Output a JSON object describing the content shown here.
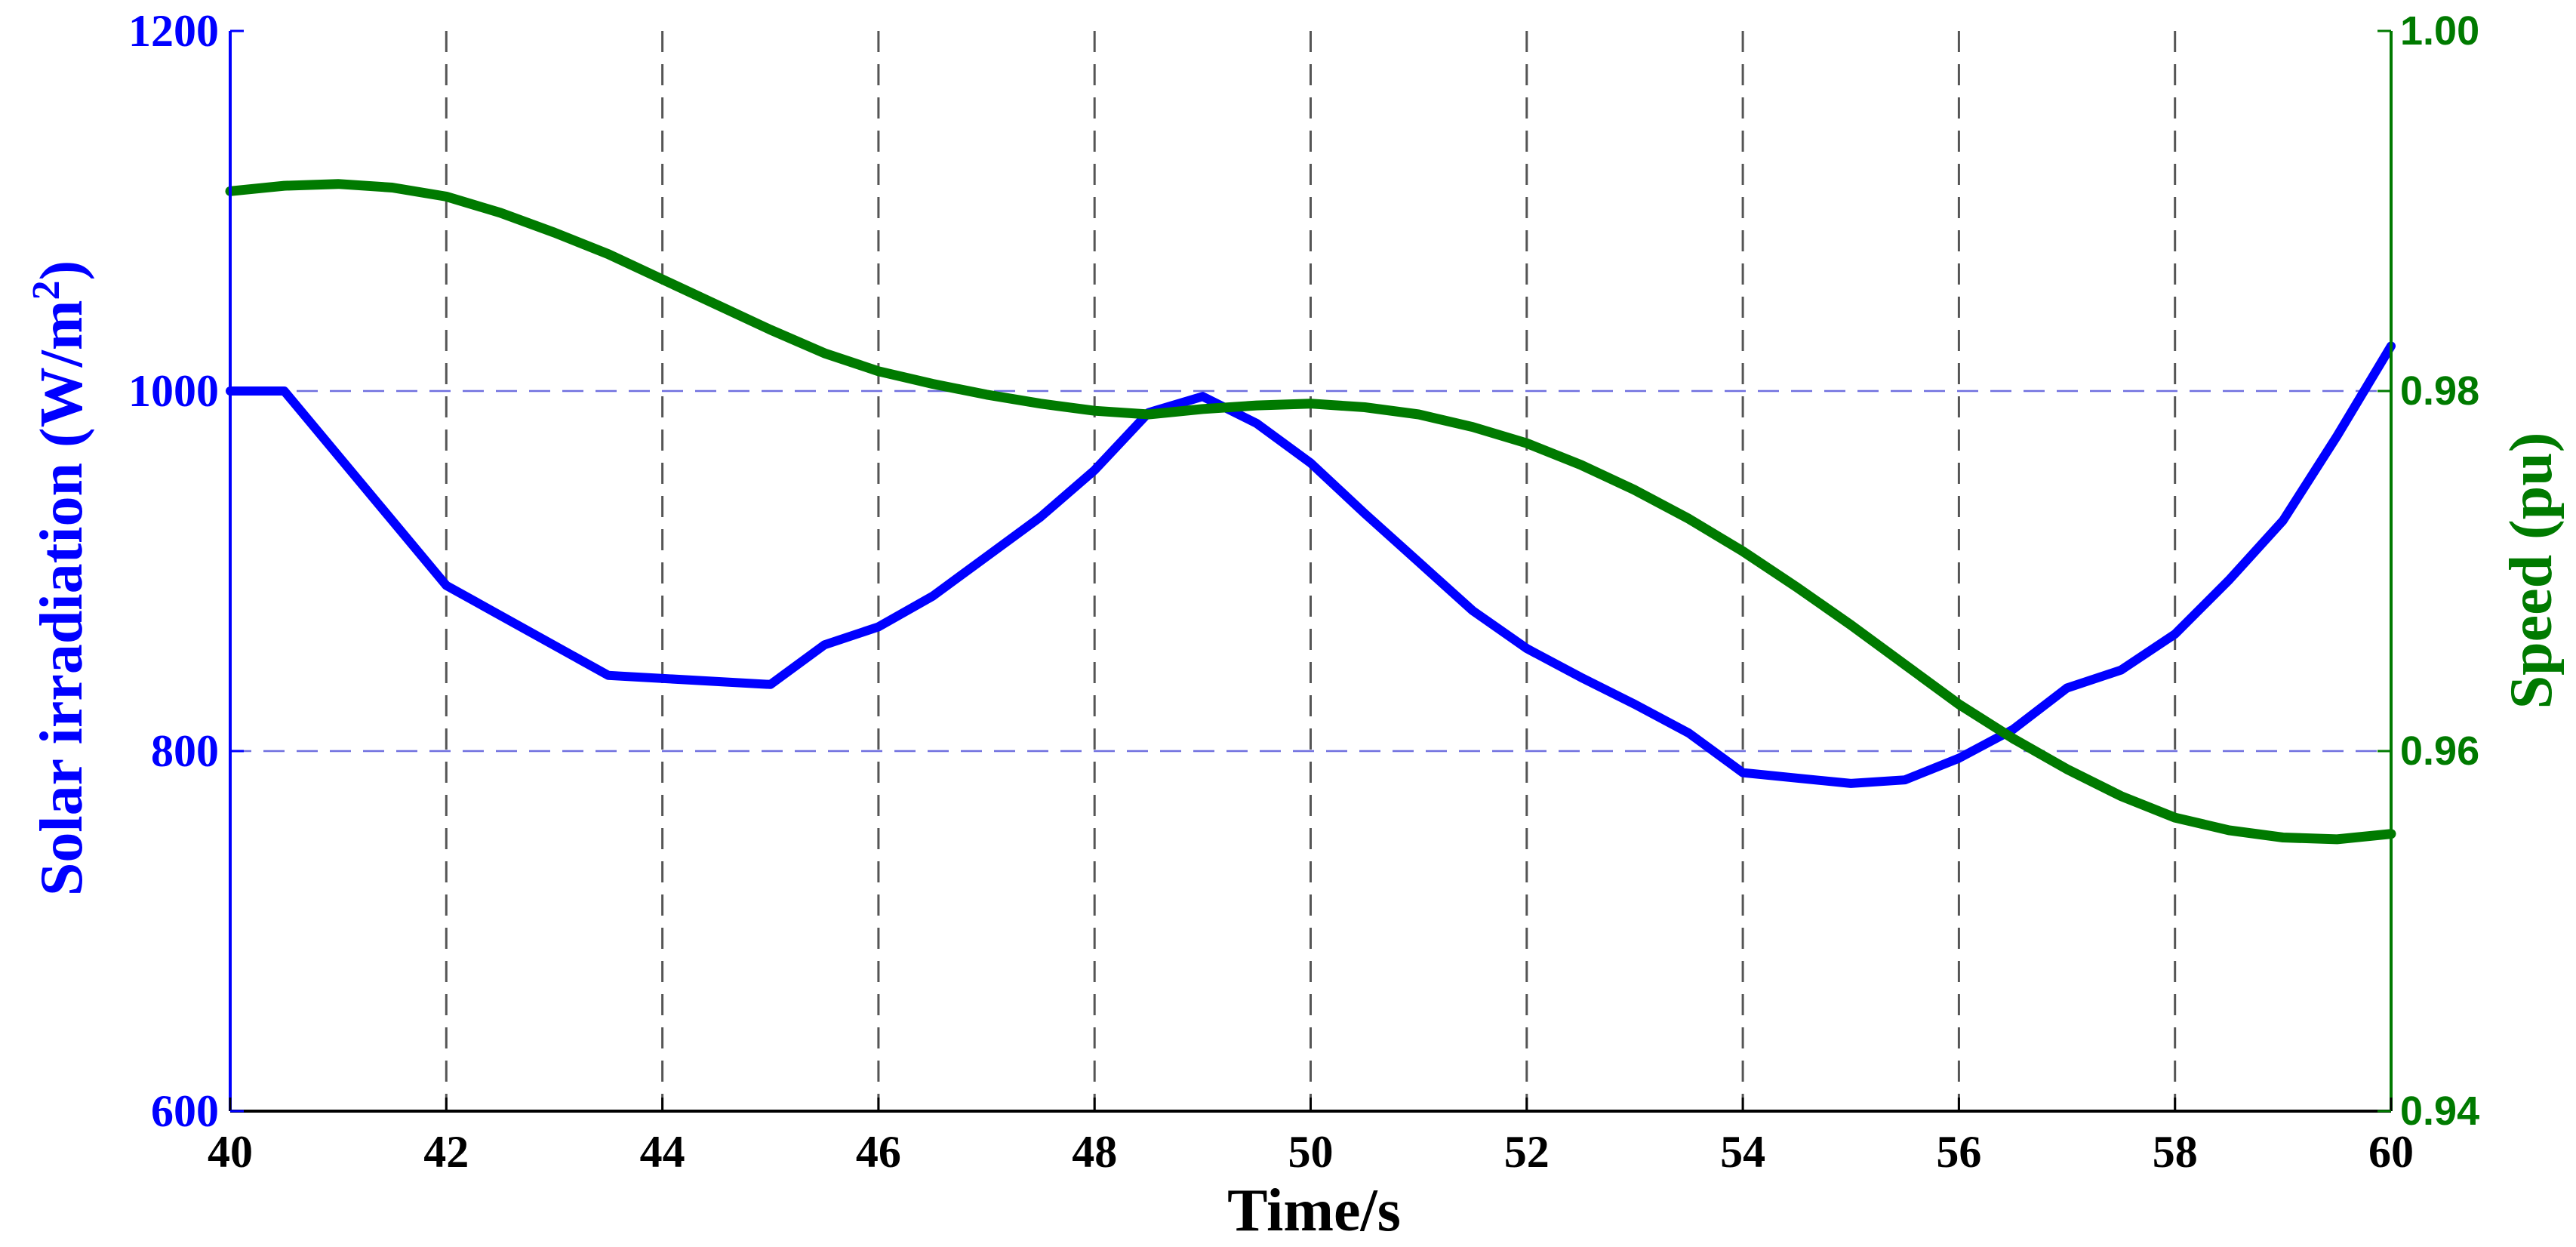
{
  "chart_data": {
    "type": "line",
    "title": "",
    "xlabel": "Time/s",
    "ylabel": "Solar irradiation (W/m",
    "ylabel_sup": "2",
    "ylabel_close": ")",
    "y2label": "Speed (pu)",
    "xlim": [
      40,
      60
    ],
    "ylim": [
      600,
      1200
    ],
    "y2lim": [
      0.94,
      1.0
    ],
    "x_ticks": [
      40,
      42,
      44,
      46,
      48,
      50,
      52,
      54,
      56,
      58,
      60
    ],
    "x_tick_labels": [
      "40",
      "42",
      "44",
      "46",
      "48",
      "50",
      "52",
      "54",
      "56",
      "58",
      "60"
    ],
    "y_ticks": [
      600,
      800,
      1000,
      1200
    ],
    "y_tick_labels": [
      "600",
      "800",
      "1000",
      "1200"
    ],
    "y2_ticks": [
      0.94,
      0.96,
      0.98,
      1.0
    ],
    "y2_tick_labels": [
      "0.94",
      "0.96",
      "0.98",
      "1.00"
    ],
    "grid": true,
    "colors": {
      "left_axis": "#0000ff",
      "right_axis": "#007a00",
      "grid_x": "#555555",
      "grid_y": "#6f6fdf"
    },
    "series": [
      {
        "name": "Solar irradiation",
        "axis": "left",
        "color": "#0000ff",
        "x": [
          40,
          40.5,
          42,
          43.5,
          45,
          45.5,
          46,
          46.5,
          47,
          47.5,
          48,
          48.5,
          49,
          49.5,
          50,
          50.5,
          51,
          51.5,
          52,
          52.5,
          53,
          53.5,
          54,
          54.5,
          55,
          55.5,
          56,
          56.5,
          57,
          57.5,
          58,
          58.5,
          59,
          59.5,
          60
        ],
        "y": [
          1000,
          1000,
          892,
          842,
          837,
          859,
          869,
          886,
          908,
          930,
          956,
          988,
          997,
          982,
          960,
          932,
          905,
          878,
          857,
          841,
          826,
          810,
          788,
          785,
          782,
          784,
          796,
          812,
          835,
          845,
          865,
          895,
          928,
          975,
          1025
        ]
      },
      {
        "name": "Speed",
        "axis": "right",
        "color": "#007a00",
        "x": [
          40,
          40.5,
          41,
          41.5,
          42,
          42.5,
          43,
          43.5,
          44,
          44.5,
          45,
          45.5,
          46,
          46.5,
          47,
          47.5,
          48,
          48.5,
          49,
          49.5,
          50,
          50.5,
          51,
          51.5,
          52,
          52.5,
          53,
          53.5,
          54,
          54.5,
          55,
          55.5,
          56,
          56.5,
          57,
          57.5,
          58,
          58.5,
          59,
          59.5,
          60
        ],
        "y": [
          0.9911,
          0.9914,
          0.9915,
          0.9913,
          0.9908,
          0.9899,
          0.9888,
          0.9876,
          0.9862,
          0.9848,
          0.9834,
          0.9821,
          0.9811,
          0.9804,
          0.9798,
          0.9793,
          0.9789,
          0.9787,
          0.979,
          0.9792,
          0.9793,
          0.9791,
          0.9787,
          0.978,
          0.9771,
          0.9759,
          0.9745,
          0.9729,
          0.9711,
          0.9691,
          0.967,
          0.9648,
          0.9626,
          0.9607,
          0.959,
          0.9575,
          0.9563,
          0.9556,
          0.9552,
          0.9551,
          0.9554
        ]
      }
    ]
  }
}
